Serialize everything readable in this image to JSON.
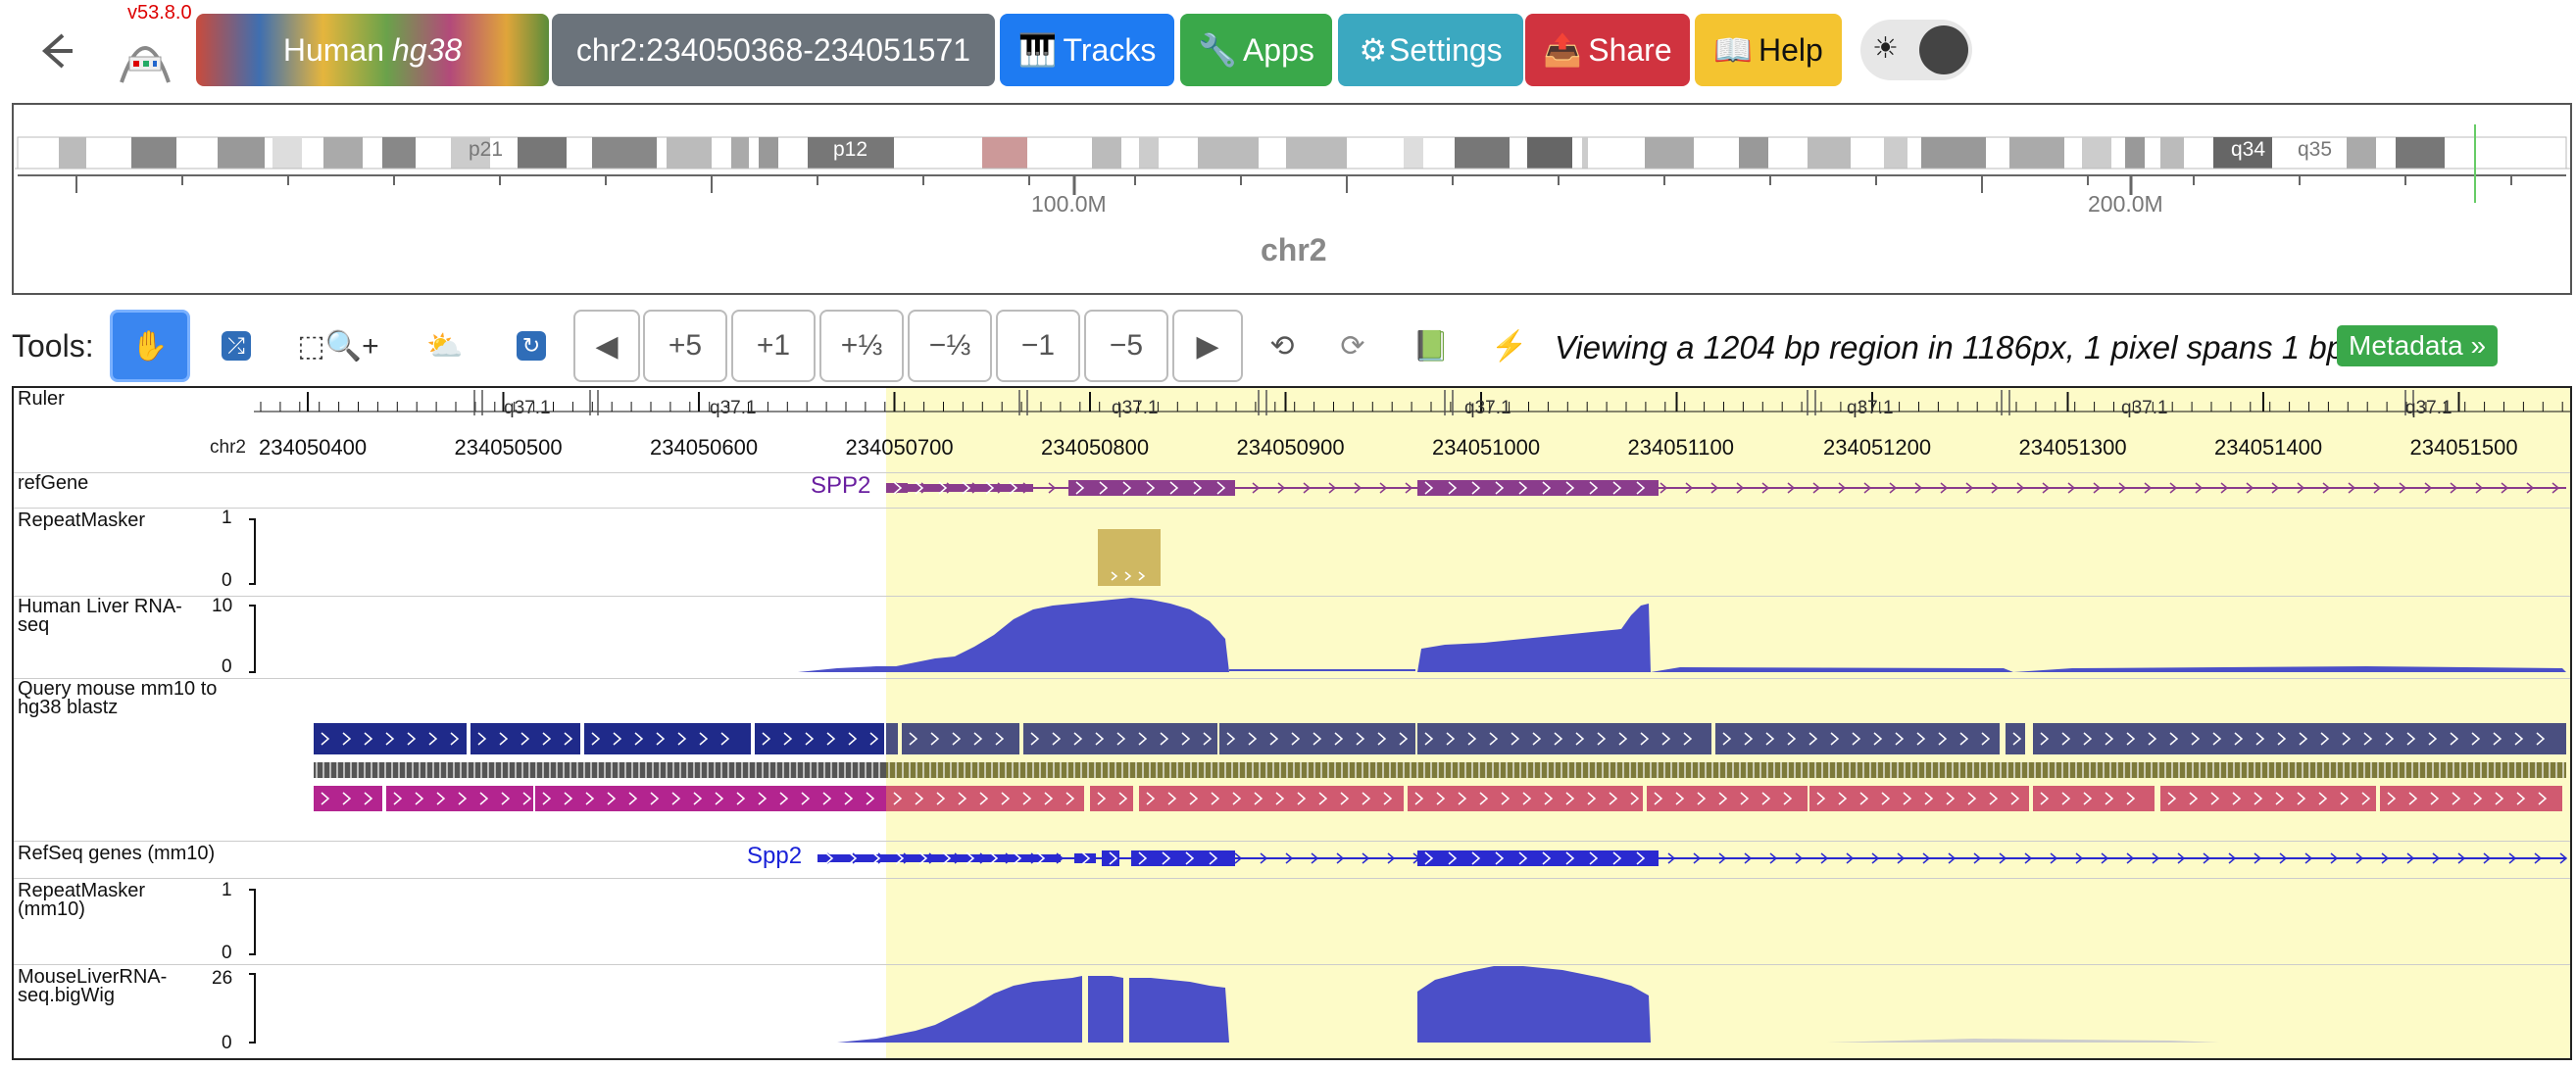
{
  "header": {
    "version": "v53.8.0",
    "genome_species": "Human",
    "genome_assembly": "hg38",
    "locus": "chr2:234050368-234051571",
    "tracks_label": "Tracks",
    "apps_label": "Apps",
    "settings_label": "Settings",
    "share_label": "Share",
    "help_label": "Help"
  },
  "colors": {
    "tracks": "#1e7bf2",
    "apps": "#3aa84a",
    "settings": "#3ba8c0",
    "share": "#d0333f",
    "help": "#f4c430",
    "locus_bg": "#6b737b",
    "highlight": "#fdfbc8",
    "coverage": "#4b4fc8",
    "refgene": "#8a3c8c",
    "blast_dark": "#1f2a8a",
    "blast_magenta": "#b3248f",
    "mouse_refseq": "#2a2ad0"
  },
  "ideogram": {
    "chromosome": "chr2",
    "band_labels": [
      "p21",
      "p12",
      "q34",
      "q35"
    ],
    "axis_labels": [
      "100.0M",
      "200.0M"
    ]
  },
  "toolbar": {
    "label": "Tools:",
    "zoom_buttons": [
      "+5",
      "+1",
      "+⅓",
      "−⅓",
      "−1",
      "−5"
    ],
    "viewing_text": "Viewing a 1204 bp region in 1186px, 1 pixel spans 1 bp",
    "metadata_label": "Metadata »"
  },
  "ruler": {
    "chrom": "chr2",
    "ticks": [
      "234050400",
      "234050500",
      "234050600",
      "234050700",
      "234050800",
      "234050900",
      "234051000",
      "234051100",
      "234051200",
      "234051300",
      "234051400",
      "234051500"
    ],
    "band": "q37.1"
  },
  "tracks": [
    {
      "name": "Ruler"
    },
    {
      "name": "refGene",
      "gene": "SPP2"
    },
    {
      "name": "RepeatMasker",
      "ymax": "1",
      "ymin": "0"
    },
    {
      "name": "Human Liver RNA-seq",
      "ymax": "10",
      "ymin": "0"
    },
    {
      "name": "Query mouse mm10 to hg38 blastz"
    },
    {
      "name": "RefSeq genes (mm10)",
      "gene": "Spp2"
    },
    {
      "name": "RepeatMasker (mm10)",
      "ymax": "1",
      "ymin": "0"
    },
    {
      "name": "MouseLiverRNA-seq.bigWig",
      "ymax": "26",
      "ymin": "0"
    }
  ]
}
